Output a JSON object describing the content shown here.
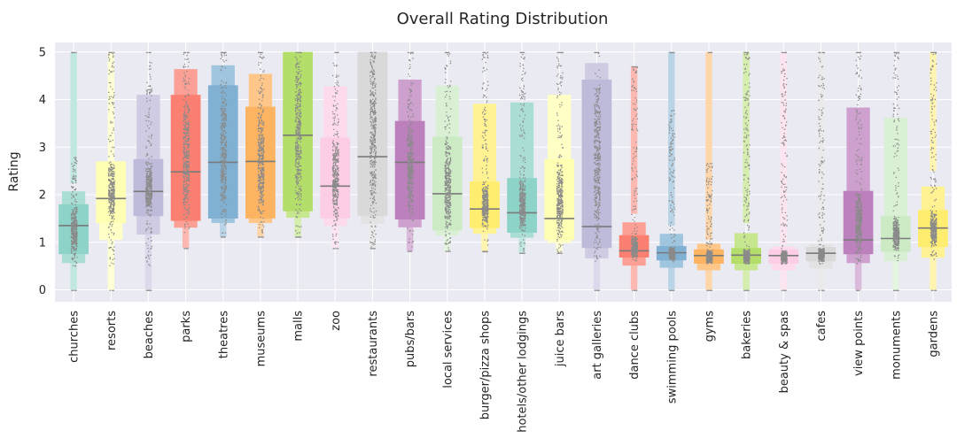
{
  "chart_data": {
    "type": "boxenplot",
    "title": "Overall Rating Distribution",
    "xlabel": "",
    "ylabel": "Rating",
    "ylim": [
      -0.25,
      5.2
    ],
    "yticks": [
      0,
      1,
      2,
      3,
      4,
      5
    ],
    "grid": true,
    "legend": "none",
    "point_color": "#8a8a8a",
    "median_color": "#7a7a7a",
    "categories": [
      {
        "name": "churches",
        "color": "#8dd3c7",
        "min": 0,
        "q1": 0.75,
        "median": 1.35,
        "q3": 1.8,
        "upper": 2.25,
        "max": 5.0,
        "p_low": 0.5,
        "p_high": 2.8
      },
      {
        "name": "resorts",
        "color": "#ffffb3",
        "min": 0,
        "q1": 1.4,
        "median": 1.92,
        "q3": 2.7,
        "upper": 2.7,
        "max": 5.0,
        "p_low": 0.5,
        "p_high": 5.0
      },
      {
        "name": "beaches",
        "color": "#bebada",
        "min": 0,
        "q1": 1.55,
        "median": 2.07,
        "q3": 2.75,
        "upper": 5.0,
        "max": 5.0,
        "p_low": 0.5,
        "p_high": 5.0
      },
      {
        "name": "parks",
        "color": "#fb8072",
        "min": 0.88,
        "q1": 1.45,
        "median": 2.48,
        "q3": 4.1,
        "upper": 5.0,
        "max": 5.0,
        "p_low": 1.2,
        "p_high": 5.0
      },
      {
        "name": "theatres",
        "color": "#80b1d3",
        "min": 1.12,
        "q1": 1.5,
        "median": 2.68,
        "q3": 4.3,
        "upper": 5.0,
        "max": 5.0,
        "p_low": 1.2,
        "p_high": 5.0
      },
      {
        "name": "museums",
        "color": "#fdb462",
        "min": 1.12,
        "q1": 1.5,
        "median": 2.7,
        "q3": 3.85,
        "upper": 5.0,
        "max": 5.0,
        "p_low": 1.2,
        "p_high": 5.0
      },
      {
        "name": "malls",
        "color": "#b3de69",
        "min": 1.12,
        "q1": 1.65,
        "median": 3.25,
        "q3": 5.0,
        "upper": 5.0,
        "max": 5.0,
        "p_low": 1.2,
        "p_high": 5.0
      },
      {
        "name": "zoo",
        "color": "#fccde5",
        "min": 0.88,
        "q1": 1.5,
        "median": 2.18,
        "q3": 3.2,
        "upper": 5.0,
        "max": 5.0,
        "p_low": 0.9,
        "p_high": 5.0
      },
      {
        "name": "restaurants",
        "color": "#d9d9d9",
        "min": 0.88,
        "q1": 1.55,
        "median": 2.8,
        "q3": 5.0,
        "upper": 5.0,
        "max": 5.0,
        "p_low": 0.9,
        "p_high": 5.0
      },
      {
        "name": "pubs/bars",
        "color": "#bc80bd",
        "min": 0.82,
        "q1": 1.48,
        "median": 2.68,
        "q3": 3.55,
        "upper": 5.0,
        "max": 5.0,
        "p_low": 0.85,
        "p_high": 5.0
      },
      {
        "name": "local services",
        "color": "#ccebc5",
        "min": 0.82,
        "q1": 1.25,
        "median": 2.02,
        "q3": 3.22,
        "upper": 5.0,
        "max": 5.0,
        "p_low": 0.8,
        "p_high": 5.0
      },
      {
        "name": "burger/pizza shops",
        "color": "#ffed6f",
        "min": 0.82,
        "q1": 1.3,
        "median": 1.7,
        "q3": 2.28,
        "upper": 5.0,
        "max": 5.0,
        "p_low": 0.8,
        "p_high": 5.0
      },
      {
        "name": "hotels/other lodgings",
        "color": "#8dd3c7",
        "min": 0.78,
        "q1": 1.2,
        "median": 1.62,
        "q3": 2.35,
        "upper": 5.0,
        "max": 5.0,
        "p_low": 0.8,
        "p_high": 5.0
      },
      {
        "name": "juice bars",
        "color": "#ffffb3",
        "min": 0.78,
        "q1": 1.05,
        "median": 1.5,
        "q3": 2.75,
        "upper": 5.0,
        "max": 5.0,
        "p_low": 0.8,
        "p_high": 5.0
      },
      {
        "name": "art galleries",
        "color": "#bebada",
        "min": 0,
        "q1": 0.88,
        "median": 1.33,
        "q3": 4.42,
        "upper": 5.0,
        "max": 5.0,
        "p_low": 0.6,
        "p_high": 5.0
      },
      {
        "name": "dance clubs",
        "color": "#fb8072",
        "min": 0,
        "q1": 0.68,
        "median": 0.82,
        "q3": 1.15,
        "upper": 1.6,
        "max": 4.7,
        "p_low": 0.55,
        "p_high": 4.7
      },
      {
        "name": "swimming pools",
        "color": "#80b1d3",
        "min": 0,
        "q1": 0.62,
        "median": 0.78,
        "q3": 0.92,
        "upper": 1.35,
        "max": 5.0,
        "p_low": 0.55,
        "p_high": 3.8
      },
      {
        "name": "gyms",
        "color": "#fdb462",
        "min": 0,
        "q1": 0.55,
        "median": 0.72,
        "q3": 0.85,
        "upper": 1.05,
        "max": 5.0,
        "p_low": 0.55,
        "p_high": 2.7
      },
      {
        "name": "bakeries",
        "color": "#b3de69",
        "min": 0,
        "q1": 0.55,
        "median": 0.73,
        "q3": 0.88,
        "upper": 1.4,
        "max": 5.0,
        "p_low": 0.55,
        "p_high": 5.0
      },
      {
        "name": "beauty & spas",
        "color": "#fccde5",
        "min": 0,
        "q1": 0.55,
        "median": 0.72,
        "q3": 0.85,
        "upper": 0.95,
        "max": 5.0,
        "p_low": 0.55,
        "p_high": 4.9
      },
      {
        "name": "cafes",
        "color": "#d9d9d9",
        "min": 0,
        "q1": 0.6,
        "median": 0.77,
        "q3": 0.9,
        "upper": 1.0,
        "max": 5.0,
        "p_low": 0.55,
        "p_high": 5.0
      },
      {
        "name": "view points",
        "color": "#bc80bd",
        "min": 0,
        "q1": 0.75,
        "median": 1.05,
        "q3": 2.08,
        "upper": 5.0,
        "max": 5.0,
        "p_low": 0.55,
        "p_high": 5.0
      },
      {
        "name": "monuments",
        "color": "#ccebc5",
        "min": 0,
        "q1": 0.8,
        "median": 1.08,
        "q3": 1.55,
        "upper": 5.0,
        "max": 5.0,
        "p_low": 0.55,
        "p_high": 5.0
      },
      {
        "name": "gardens",
        "color": "#ffed6f",
        "min": 0,
        "q1": 0.9,
        "median": 1.3,
        "q3": 1.68,
        "upper": 2.5,
        "max": 5.0,
        "p_low": 0.55,
        "p_high": 5.0
      }
    ]
  }
}
